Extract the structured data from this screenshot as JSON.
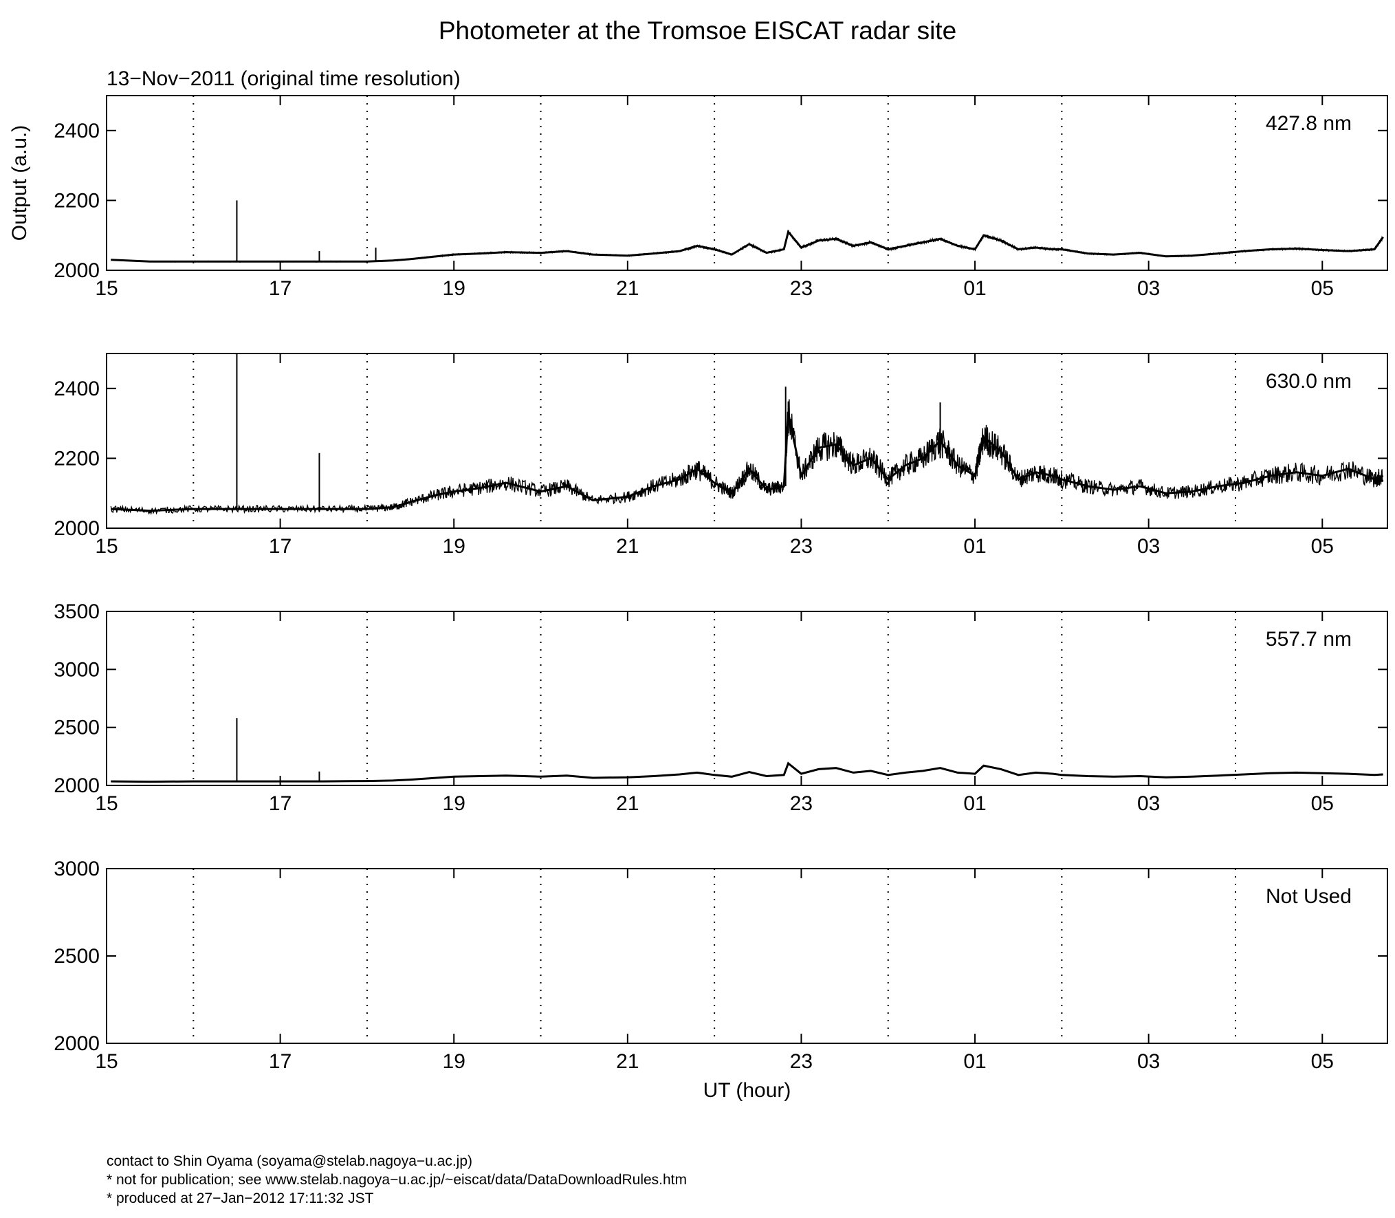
{
  "title": "Photometer at the Tromsoe EISCAT radar site",
  "subtitle": "13−Nov−2011 (original time resolution)",
  "footer": {
    "line1": "contact to Shin Oyama (soyama@stelab.nagoya−u.ac.jp)",
    "line2": "* not for publication; see www.stelab.nagoya−u.ac.jp/~eiscat/data/DataDownloadRules.htm",
    "line3": "* produced at 27−Jan−2012 17:11:32 JST"
  },
  "chart_data": [
    {
      "type": "line",
      "panel_label": "427.8 nm",
      "ylabel": "Output (a.u.)",
      "xlabel": "",
      "xlim": [
        15,
        29.75
      ],
      "ylim": [
        2000,
        2500
      ],
      "yticks": [
        "2000",
        "2200",
        "2400"
      ],
      "xticks": [
        "15",
        "17",
        "19",
        "21",
        "23",
        "01",
        "03",
        "05"
      ],
      "grid": "dotted vertical at every hour",
      "line_color": "#000000",
      "x": [
        15.05,
        15.5,
        16.0,
        16.5,
        17.0,
        17.5,
        18.0,
        18.3,
        18.5,
        18.8,
        19.0,
        19.3,
        19.6,
        20.0,
        20.3,
        20.6,
        21.0,
        21.3,
        21.6,
        21.8,
        22.0,
        22.2,
        22.4,
        22.6,
        22.8,
        22.85,
        23.0,
        23.2,
        23.4,
        23.6,
        23.8,
        24.0,
        24.2,
        24.4,
        24.6,
        24.8,
        25.0,
        25.1,
        25.3,
        25.5,
        25.7,
        25.9,
        26.0,
        26.3,
        26.6,
        26.9,
        27.2,
        27.5,
        27.8,
        28.1,
        28.4,
        28.7,
        29.0,
        29.3,
        29.6,
        29.7
      ],
      "y": [
        2030,
        2025,
        2025,
        2025,
        2025,
        2025,
        2025,
        2028,
        2032,
        2040,
        2045,
        2048,
        2052,
        2050,
        2055,
        2045,
        2042,
        2048,
        2055,
        2070,
        2060,
        2045,
        2075,
        2050,
        2060,
        2110,
        2065,
        2085,
        2090,
        2070,
        2080,
        2060,
        2070,
        2080,
        2090,
        2070,
        2060,
        2100,
        2085,
        2060,
        2065,
        2060,
        2060,
        2048,
        2045,
        2050,
        2040,
        2042,
        2048,
        2055,
        2060,
        2062,
        2058,
        2055,
        2060,
        2095
      ],
      "spikes": [
        {
          "x": 16.5,
          "y": 2200
        },
        {
          "x": 17.45,
          "y": 2055
        },
        {
          "x": 18.1,
          "y": 2065
        }
      ]
    },
    {
      "type": "line",
      "panel_label": "630.0 nm",
      "ylabel": "",
      "xlabel": "",
      "xlim": [
        15,
        29.75
      ],
      "ylim": [
        2000,
        2500
      ],
      "yticks": [
        "2000",
        "2200",
        "2400"
      ],
      "xticks": [
        "15",
        "17",
        "19",
        "21",
        "23",
        "01",
        "03",
        "05"
      ],
      "grid": "dotted vertical at every hour",
      "line_color": "#000000",
      "x": [
        15.05,
        15.5,
        16.0,
        16.5,
        17.0,
        17.5,
        18.0,
        18.3,
        18.5,
        18.8,
        19.0,
        19.3,
        19.6,
        20.0,
        20.3,
        20.6,
        21.0,
        21.3,
        21.6,
        21.8,
        22.0,
        22.2,
        22.4,
        22.6,
        22.8,
        22.85,
        23.0,
        23.2,
        23.4,
        23.6,
        23.8,
        24.0,
        24.2,
        24.4,
        24.6,
        24.8,
        25.0,
        25.1,
        25.3,
        25.5,
        25.7,
        25.9,
        26.0,
        26.3,
        26.6,
        26.9,
        27.2,
        27.5,
        27.8,
        28.1,
        28.4,
        28.7,
        29.0,
        29.3,
        29.6,
        29.7
      ],
      "y": [
        2055,
        2050,
        2055,
        2055,
        2055,
        2055,
        2055,
        2060,
        2075,
        2095,
        2105,
        2115,
        2130,
        2105,
        2120,
        2080,
        2090,
        2120,
        2140,
        2170,
        2130,
        2100,
        2170,
        2110,
        2120,
        2330,
        2150,
        2230,
        2240,
        2180,
        2200,
        2140,
        2180,
        2200,
        2250,
        2180,
        2150,
        2260,
        2220,
        2140,
        2160,
        2150,
        2140,
        2120,
        2110,
        2120,
        2100,
        2105,
        2120,
        2130,
        2150,
        2160,
        2150,
        2170,
        2140,
        2150
      ],
      "spikes": [
        {
          "x": 16.5,
          "y": 2500
        },
        {
          "x": 17.45,
          "y": 2215
        },
        {
          "x": 22.82,
          "y": 2405
        },
        {
          "x": 24.6,
          "y": 2360
        }
      ]
    },
    {
      "type": "line",
      "panel_label": "557.7 nm",
      "ylabel": "",
      "xlabel": "",
      "xlim": [
        15,
        29.75
      ],
      "ylim": [
        2000,
        3500
      ],
      "yticks": [
        "2000",
        "2500",
        "3000",
        "3500"
      ],
      "xticks": [
        "15",
        "17",
        "19",
        "21",
        "23",
        "01",
        "03",
        "05"
      ],
      "grid": "dotted vertical at every hour",
      "line_color": "#000000",
      "x": [
        15.05,
        15.5,
        16.0,
        16.5,
        17.0,
        17.5,
        18.0,
        18.3,
        18.5,
        18.8,
        19.0,
        19.3,
        19.6,
        20.0,
        20.3,
        20.6,
        21.0,
        21.3,
        21.6,
        21.8,
        22.0,
        22.2,
        22.4,
        22.6,
        22.8,
        22.85,
        23.0,
        23.2,
        23.4,
        23.6,
        23.8,
        24.0,
        24.2,
        24.4,
        24.6,
        24.8,
        25.0,
        25.1,
        25.3,
        25.5,
        25.7,
        25.9,
        26.0,
        26.3,
        26.6,
        26.9,
        27.2,
        27.5,
        27.8,
        28.1,
        28.4,
        28.7,
        29.0,
        29.3,
        29.6,
        29.7
      ],
      "y": [
        2035,
        2032,
        2035,
        2035,
        2035,
        2035,
        2038,
        2042,
        2050,
        2065,
        2075,
        2080,
        2085,
        2075,
        2085,
        2065,
        2070,
        2080,
        2095,
        2110,
        2090,
        2075,
        2115,
        2080,
        2090,
        2190,
        2100,
        2140,
        2150,
        2110,
        2125,
        2090,
        2110,
        2125,
        2150,
        2110,
        2100,
        2170,
        2140,
        2090,
        2110,
        2100,
        2090,
        2080,
        2075,
        2080,
        2070,
        2075,
        2085,
        2095,
        2105,
        2110,
        2105,
        2100,
        2090,
        2095
      ],
      "spikes": [
        {
          "x": 16.5,
          "y": 2580
        },
        {
          "x": 17.45,
          "y": 2120
        }
      ]
    },
    {
      "type": "line",
      "panel_label": "Not Used",
      "ylabel": "",
      "xlabel": "UT (hour)",
      "xlim": [
        15,
        29.75
      ],
      "ylim": [
        2000,
        3000
      ],
      "yticks": [
        "2000",
        "2500",
        "3000"
      ],
      "xticks": [
        "15",
        "17",
        "19",
        "21",
        "23",
        "01",
        "03",
        "05"
      ],
      "grid": "dotted vertical at every hour",
      "line_color": "#000000",
      "x": [],
      "y": [],
      "spikes": []
    }
  ]
}
